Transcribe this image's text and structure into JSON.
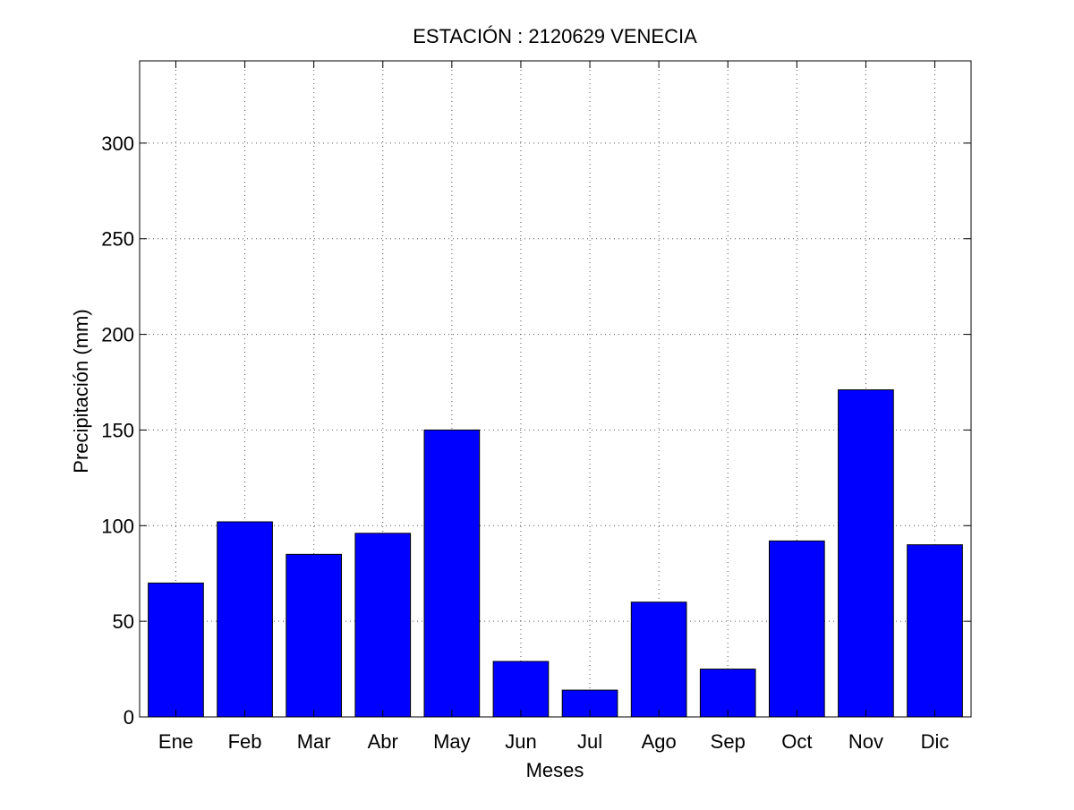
{
  "chart_data": {
    "type": "bar",
    "title": "ESTACIÓN :  2120629  VENECIA",
    "xlabel": "Meses",
    "ylabel": "Precipitación (mm)",
    "categories": [
      "Ene",
      "Feb",
      "Mar",
      "Abr",
      "May",
      "Jun",
      "Jul",
      "Ago",
      "Sep",
      "Oct",
      "Nov",
      "Dic"
    ],
    "values": [
      70,
      102,
      85,
      96,
      150,
      29,
      14,
      60,
      25,
      92,
      171,
      90
    ],
    "ylim": [
      0,
      343
    ],
    "yticks": [
      0,
      50,
      100,
      150,
      200,
      250,
      300
    ],
    "grid": true,
    "legend": "none",
    "colors": {
      "bar_fill": "#0000ff",
      "bar_edge": "#000000",
      "axis": "#000000",
      "grid": "#555555"
    }
  }
}
